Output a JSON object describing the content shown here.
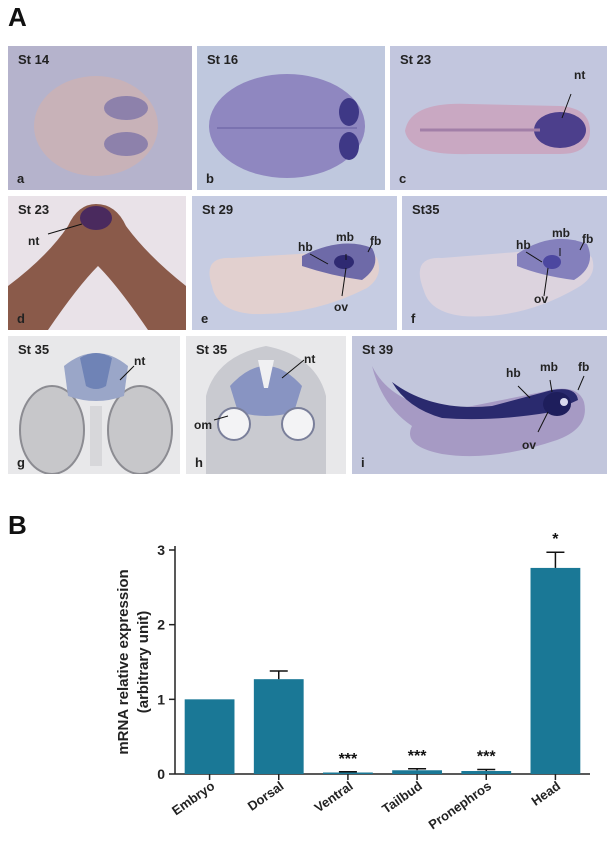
{
  "panel_a": {
    "letter": "A",
    "images": [
      {
        "stage": "St 14",
        "sub": "a",
        "labels": []
      },
      {
        "stage": "St 16",
        "sub": "b",
        "labels": []
      },
      {
        "stage": "St 23",
        "sub": "c",
        "labels": [
          "nt"
        ]
      },
      {
        "stage": "St 23",
        "sub": "d",
        "labels": [
          "nt"
        ]
      },
      {
        "stage": "St 29",
        "sub": "e",
        "labels": [
          "hb",
          "mb",
          "fb",
          "ov"
        ]
      },
      {
        "stage": "St35",
        "sub": "f",
        "labels": [
          "hb",
          "mb",
          "fb",
          "ov"
        ]
      },
      {
        "stage": "St 35",
        "sub": "g",
        "labels": [
          "nt"
        ]
      },
      {
        "stage": "St 35",
        "sub": "h",
        "labels": [
          "nt",
          "om"
        ]
      },
      {
        "stage": "St 39",
        "sub": "i",
        "labels": [
          "hb",
          "mb",
          "fb",
          "ov"
        ]
      }
    ]
  },
  "panel_b": {
    "letter": "B"
  },
  "chart_data": {
    "type": "bar",
    "categories": [
      "Embryo",
      "Dorsal",
      "Ventral",
      "Tailbud",
      "Pronephros",
      "Head"
    ],
    "values": [
      1.0,
      1.27,
      0.02,
      0.05,
      0.04,
      2.76
    ],
    "errors": [
      0.0,
      0.11,
      0.01,
      0.02,
      0.02,
      0.21
    ],
    "significance": [
      "",
      "",
      "***",
      "***",
      "***",
      "*"
    ],
    "ylabel": "mRNA relative expression",
    "ylabel2": "(arbitrary unit)",
    "ylim": [
      0,
      3
    ],
    "yticks": [
      0,
      1,
      2,
      3
    ],
    "bar_color": "#1a7896",
    "grid": false
  }
}
